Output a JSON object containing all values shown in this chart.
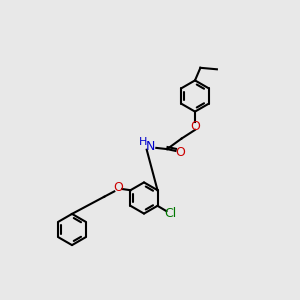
{
  "bg_color": "#e8e8e8",
  "black": "#000000",
  "red": "#cc0000",
  "blue": "#0000cc",
  "green_cl": "#007700",
  "lw": 1.5,
  "ring_r": 0.52,
  "font_size": 9,
  "font_size_small": 8,
  "xlim": [
    0,
    10
  ],
  "ylim": [
    0,
    10
  ]
}
